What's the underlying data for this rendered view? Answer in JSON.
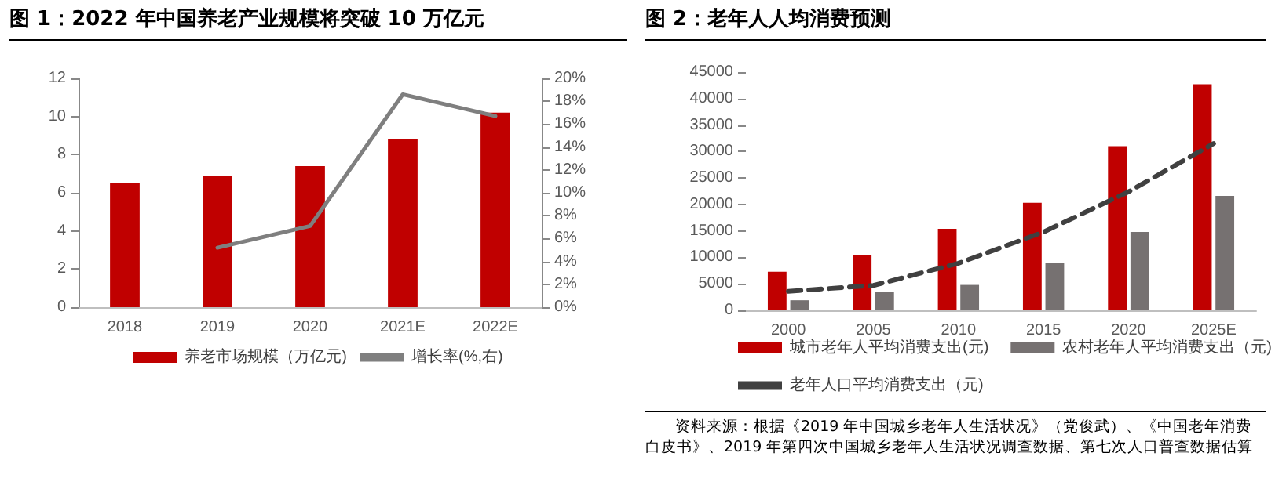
{
  "chart_data": [
    {
      "type": "bar",
      "title": "图 1：2022 年中国养老产业规模将突破 10 万亿元",
      "categories": [
        "2018",
        "2019",
        "2020",
        "2021E",
        "2022E"
      ],
      "series": [
        {
          "name": "养老市场规模（万亿元)",
          "color": "#c00000",
          "values": [
            6.5,
            6.9,
            7.4,
            8.8,
            10.2
          ]
        },
        {
          "name": "增长率(%,右)",
          "type": "line",
          "axis": "y2",
          "color": "#7f7f7f",
          "values": [
            null,
            5.2,
            7.1,
            18.6,
            16.7
          ]
        }
      ],
      "ylim": [
        0,
        12
      ],
      "yticks": [
        0,
        2,
        4,
        6,
        8,
        10,
        12
      ],
      "y2lim": [
        0,
        20
      ],
      "y2ticks": [
        {
          "value": 0,
          "label": "0%"
        },
        {
          "value": 2,
          "label": "2%"
        },
        {
          "value": 4,
          "label": "4%"
        },
        {
          "value": 6,
          "label": "6%"
        },
        {
          "value": 8,
          "label": "8%"
        },
        {
          "value": 10,
          "label": "10%"
        },
        {
          "value": 12,
          "label": "12%"
        },
        {
          "value": 14,
          "label": "14%"
        },
        {
          "value": 16,
          "label": "16%"
        },
        {
          "value": 18,
          "label": "18%"
        },
        {
          "value": 20,
          "label": "20%"
        }
      ],
      "grid": false,
      "legend": "bottom",
      "marker": "none"
    },
    {
      "type": "bar",
      "title": "图 2：老年人人均消费预测",
      "categories": [
        "2000",
        "2005",
        "2010",
        "2015",
        "2020",
        "2025E"
      ],
      "series": [
        {
          "name": "城市老年人平均消费支出(元)",
          "color": "#c00000",
          "values": [
            7300,
            10400,
            15400,
            20300,
            31000,
            42700
          ]
        },
        {
          "name": "农村老年人平均消费支出（元)",
          "color": "#767171",
          "values": [
            1900,
            3500,
            4800,
            8900,
            14800,
            21600
          ]
        },
        {
          "name": "老年人口平均消费支出（元)",
          "type": "line",
          "line_style": "dashed",
          "color": "#404040",
          "values": [
            3600,
            4700,
            8900,
            14800,
            22400,
            31500
          ]
        }
      ],
      "ylim": [
        0,
        45000
      ],
      "yticks": [
        0,
        5000,
        10000,
        15000,
        20000,
        25000,
        30000,
        35000,
        40000,
        45000
      ],
      "grid": false,
      "legend": "bottom",
      "marker": "none",
      "annotations": [
        "资料来源：根据《2019 年中国城乡老年人生活状况》（党俊武）、《中国老年消费白皮书》、2019 年第四次中国城乡老年人生活状况调查数据、第七次人口普查数据估算"
      ]
    }
  ]
}
